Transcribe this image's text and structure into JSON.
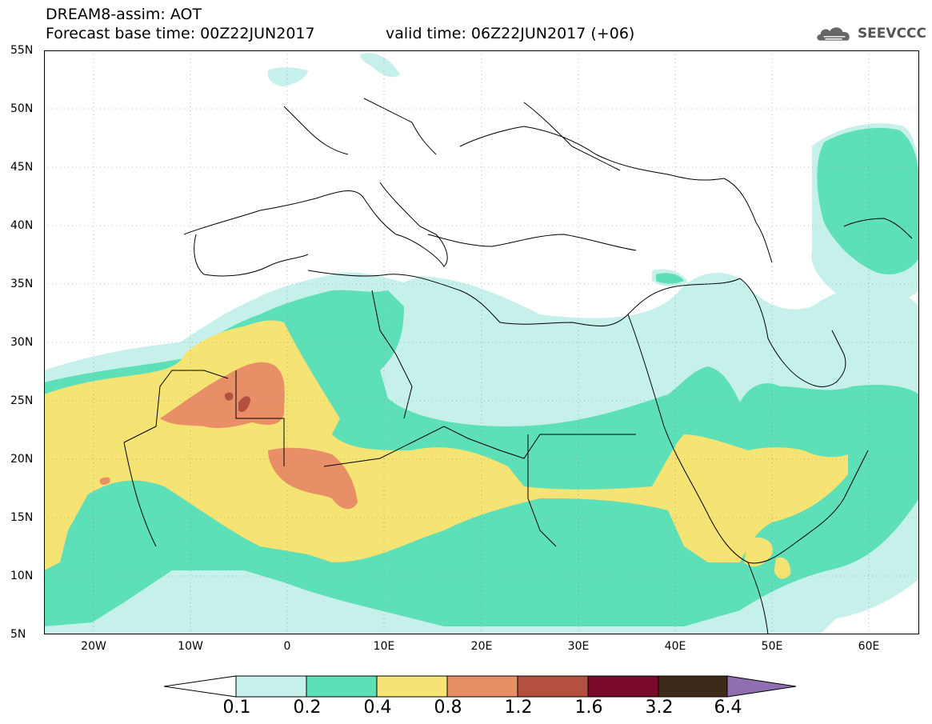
{
  "header": {
    "title_line1": "DREAM8-assim: AOT",
    "title_line2": "Forecast base time: 00Z22JUN2017",
    "valid_time": "valid time: 06Z22JUN2017 (+06)",
    "logo_text": "SEEVCCC"
  },
  "axes": {
    "lat_labels": [
      "55N",
      "50N",
      "45N",
      "40N",
      "35N",
      "30N",
      "25N",
      "20N",
      "15N",
      "10N",
      "5N"
    ],
    "lon_labels": [
      "20W",
      "10W",
      "0",
      "10E",
      "20E",
      "30E",
      "40E",
      "50E",
      "60E"
    ]
  },
  "legend": {
    "labels": [
      "0.1",
      "0.2",
      "0.4",
      "0.8",
      "1.2",
      "1.6",
      "3.2",
      "6.4"
    ],
    "colors": [
      "#c6f0ea",
      "#5ddfb8",
      "#f5e373",
      "#e98f68",
      "#b3503f",
      "#7a0a2a",
      "#3e2a18",
      "#8f6fb0"
    ]
  },
  "colors": {
    "land": "#ffffff",
    "border": "#000000",
    "c01": "#c6f0ea",
    "c02": "#5ddfb8",
    "c04": "#f5e373",
    "c08": "#e98f68",
    "c12": "#b3503f"
  }
}
